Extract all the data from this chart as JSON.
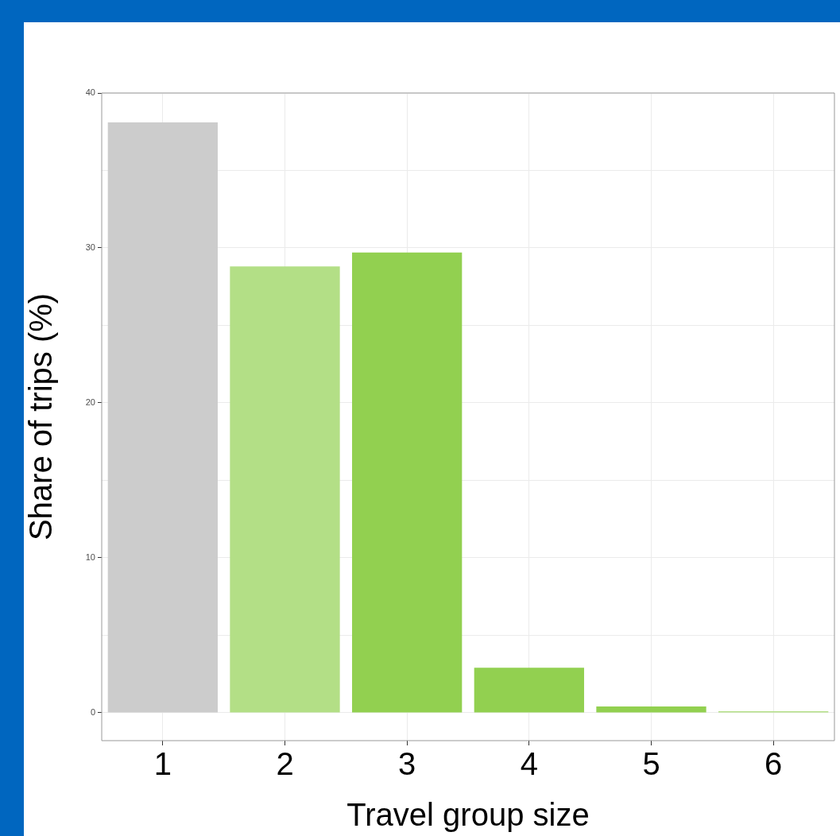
{
  "chart_data": {
    "type": "bar",
    "xlabel": "Travel group size",
    "ylabel": "Share of trips (%)",
    "categories": [
      "1",
      "2",
      "3",
      "4",
      "5",
      "6"
    ],
    "values": [
      38.1,
      28.8,
      29.7,
      2.9,
      0.4,
      0.1
    ],
    "colors": [
      "#cccccc",
      "#b3df86",
      "#92d050",
      "#92d050",
      "#92d050",
      "#b3df86"
    ],
    "ylim": [
      -1.8,
      40
    ],
    "yticks": [
      0,
      {
        "value": 5,
        "label": null
      },
      10,
      {
        "value": 15,
        "label": null
      },
      20,
      {
        "value": 25,
        "label": null
      },
      30,
      {
        "value": 35,
        "label": null
      },
      40
    ],
    "grid": true,
    "legend": false
  }
}
